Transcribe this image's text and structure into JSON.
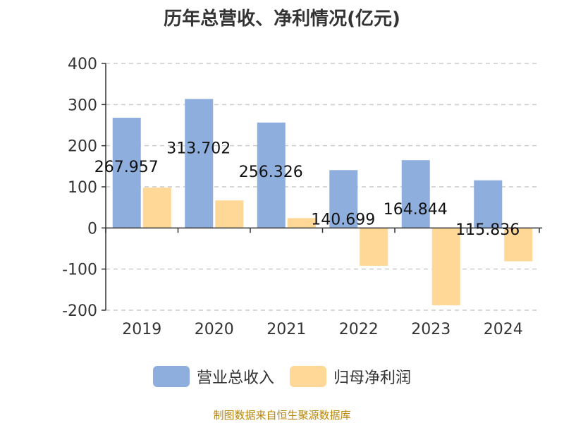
{
  "chart_data": {
    "type": "bar",
    "title": "历年总营收、净利情况(亿元)",
    "categories": [
      "2019",
      "2020",
      "2021",
      "2022",
      "2023",
      "2024"
    ],
    "series": [
      {
        "name": "营业总收入",
        "values": [
          267.957,
          313.702,
          256.326,
          140.699,
          164.844,
          115.836
        ],
        "color": "#8eaedd",
        "labels": [
          "267.957",
          "313.702",
          "256.326",
          "140.699",
          "164.844",
          "115.836"
        ]
      },
      {
        "name": "归母净利润",
        "values": [
          98,
          67,
          24,
          -92,
          -188,
          -81
        ],
        "color": "#ffd797"
      }
    ],
    "ylim": [
      -200,
      400
    ],
    "yticks": [
      400,
      300,
      200,
      100,
      0,
      -100,
      -200
    ],
    "ytick_labels": [
      "400",
      "300",
      "200",
      "100",
      "0",
      "-100",
      "-200"
    ],
    "grid": true,
    "legend_position": "bottom"
  },
  "footer": "制图数据来自恒生聚源数据库"
}
